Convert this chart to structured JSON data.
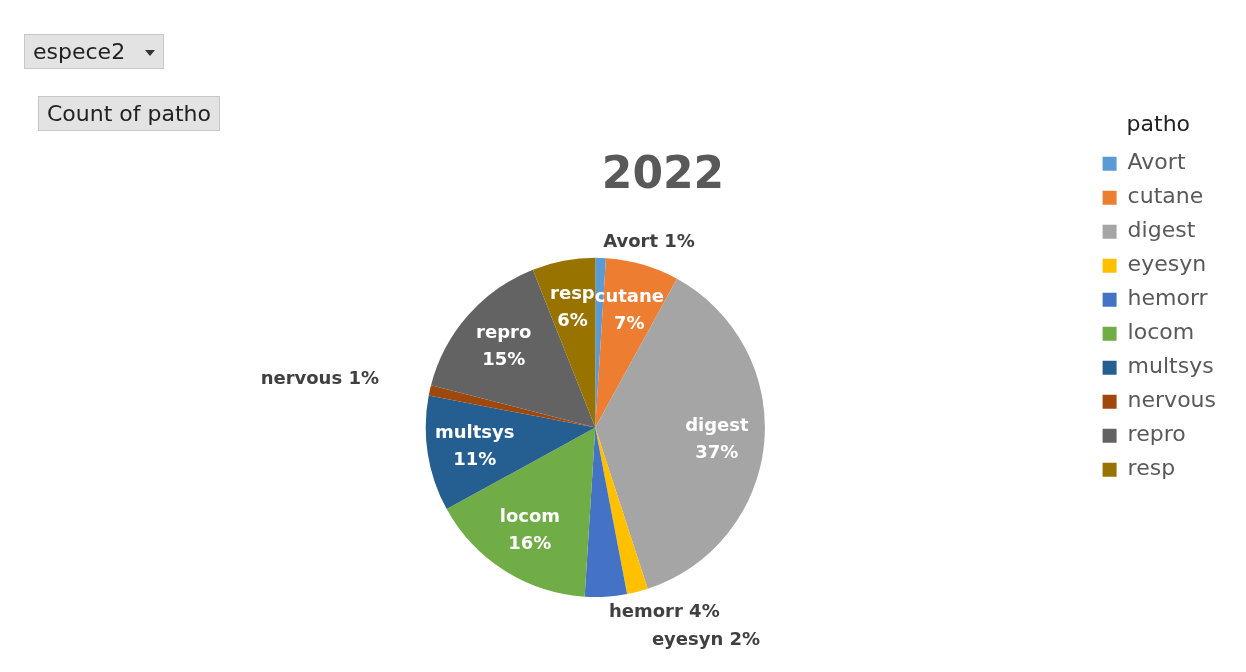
{
  "chart_data": {
    "type": "pie",
    "title": "2022",
    "legend_title": "patho",
    "legend": "right",
    "annotations": [
      "espece2",
      "Count of patho"
    ],
    "categories": [
      "Avort",
      "cutane",
      "digest",
      "eyesyn",
      "hemorr",
      "locom",
      "multsys",
      "nervous",
      "repro",
      "resp"
    ],
    "values": [
      1,
      7,
      37,
      2,
      4,
      16,
      11,
      1,
      15,
      6
    ],
    "value_labels": [
      "1%",
      "7%",
      "37%",
      "2%",
      "4%",
      "16%",
      "11%",
      "1%",
      "15%",
      "6%"
    ],
    "colors": [
      "#5b9bd5",
      "#ed7d31",
      "#a5a5a5",
      "#ffc000",
      "#4472c4",
      "#70ad47",
      "#255e91",
      "#9e480e",
      "#636363",
      "#997300"
    ]
  }
}
